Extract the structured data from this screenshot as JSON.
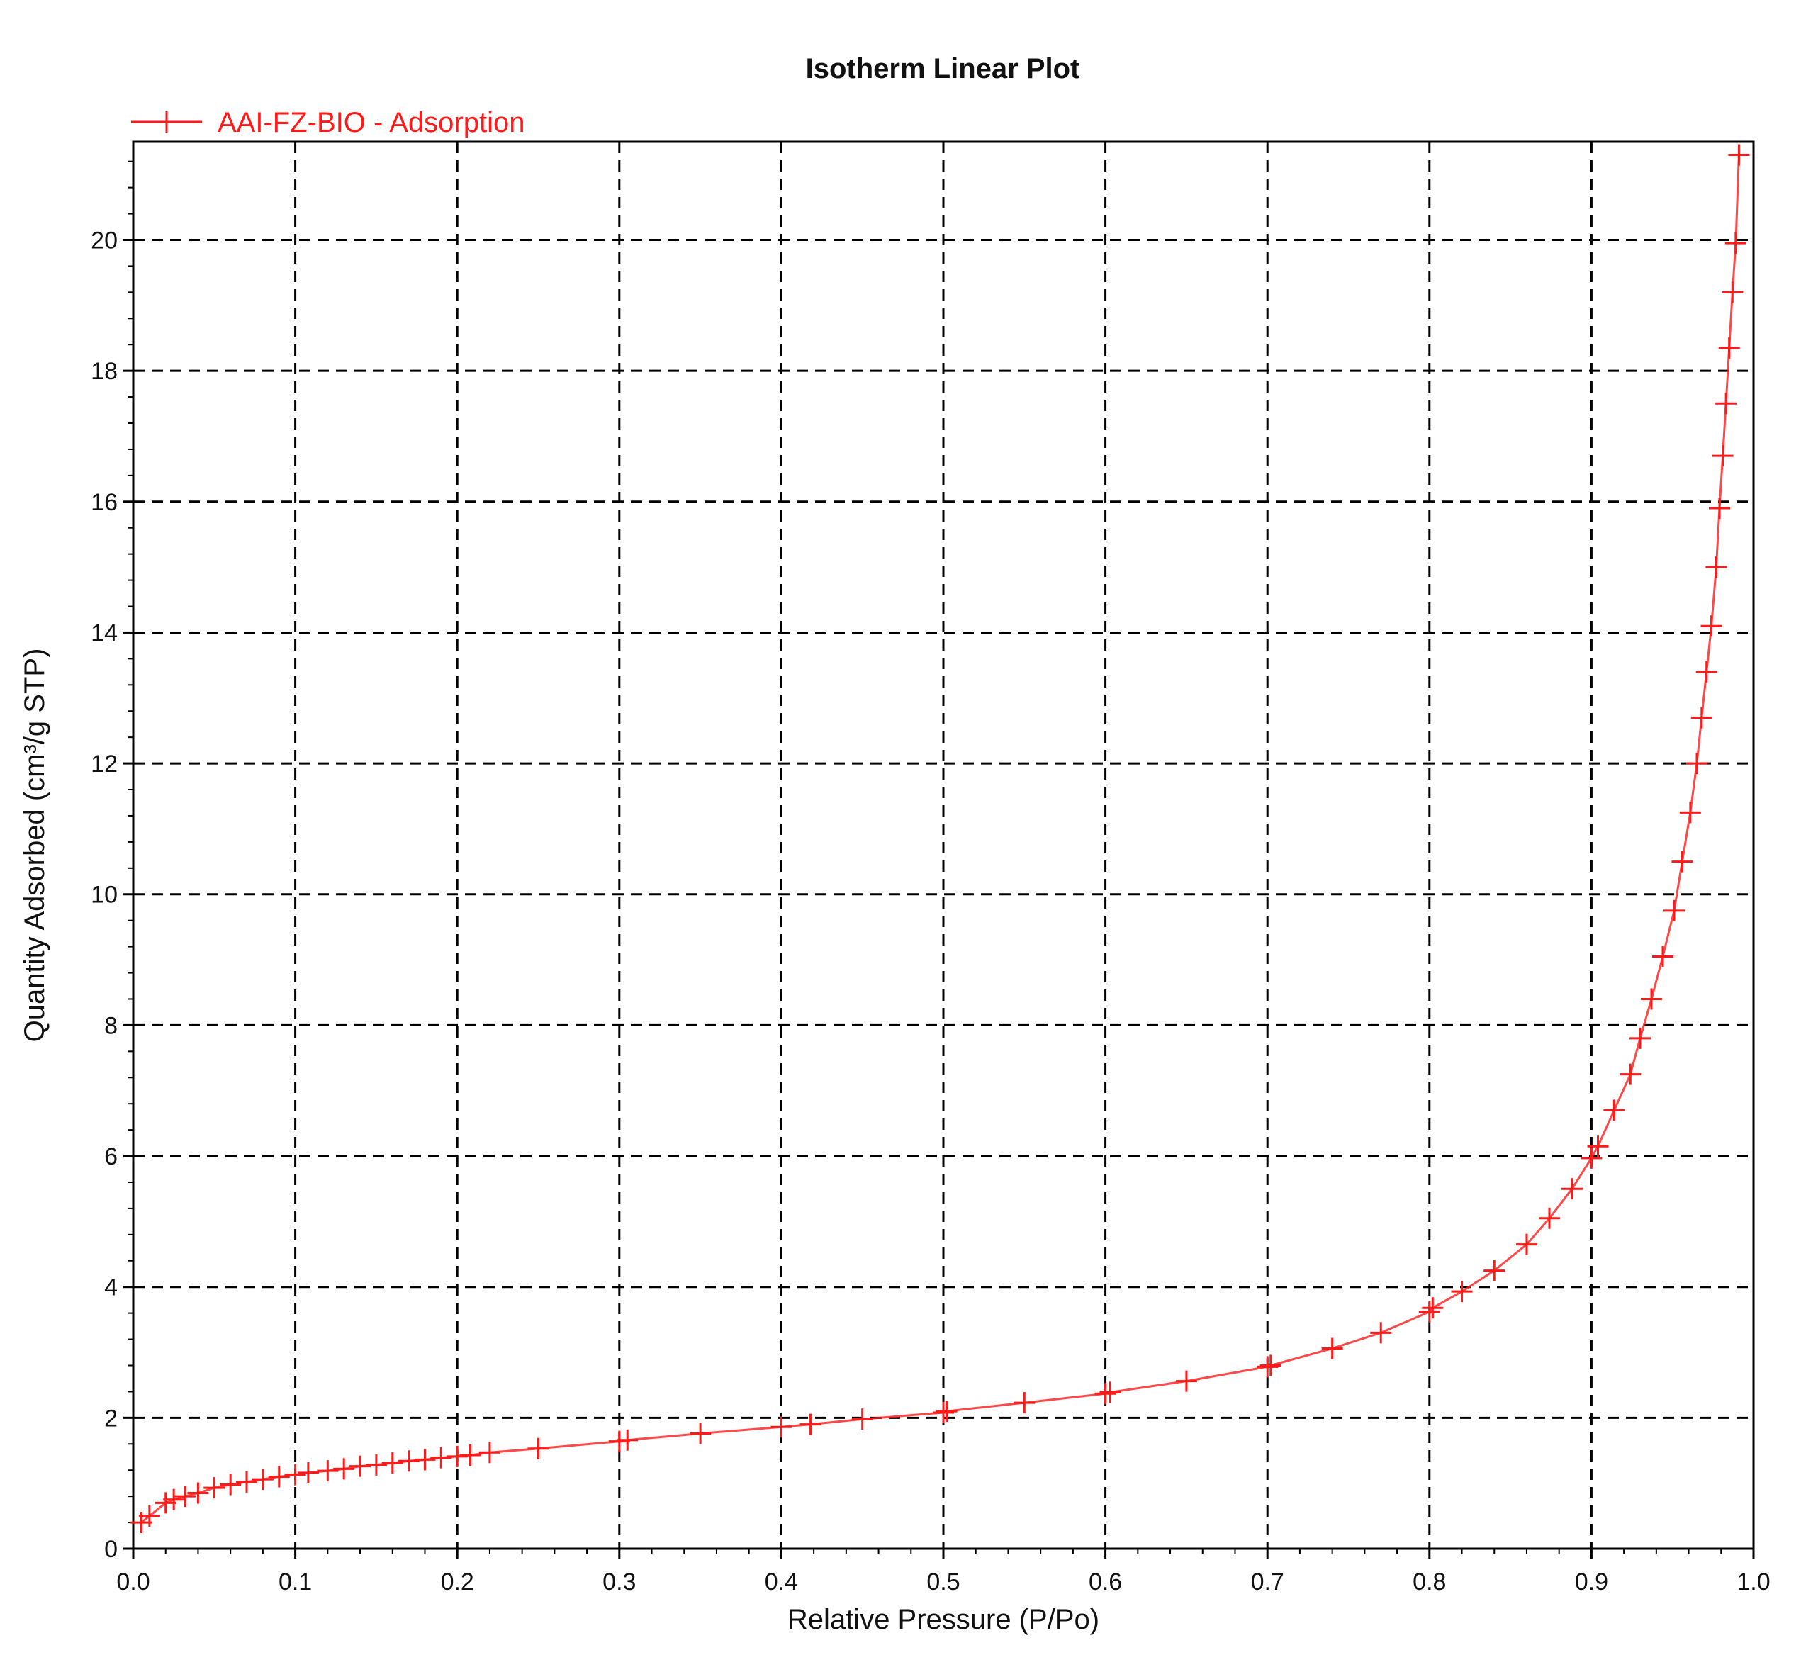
{
  "colors": {
    "series": "#ff1a1a",
    "grid": "#000000",
    "axis": "#000000",
    "text": "#111111"
  },
  "chart_data": {
    "type": "line",
    "title": "Isotherm Linear Plot",
    "xlabel": "Relative Pressure (P/Po)",
    "ylabel": "Quantity Adsorbed (cm³/g STP)",
    "xlim": [
      0.0,
      1.0
    ],
    "ylim": [
      0,
      21.5
    ],
    "xticks": [
      "0.0",
      "0.1",
      "0.2",
      "0.3",
      "0.4",
      "0.5",
      "0.6",
      "0.7",
      "0.8",
      "0.9",
      "1.0"
    ],
    "yticks": [
      "0",
      "2",
      "4",
      "6",
      "8",
      "10",
      "12",
      "14",
      "16",
      "18",
      "20"
    ],
    "grid": true,
    "grid_style": "dashed",
    "marker": "plus",
    "legend_position": "top-left",
    "series": [
      {
        "name": "AAI-FZ-BIO - Adsorption",
        "x": [
          0.005,
          0.01,
          0.02,
          0.025,
          0.032,
          0.04,
          0.05,
          0.06,
          0.07,
          0.08,
          0.09,
          0.1,
          0.108,
          0.12,
          0.13,
          0.14,
          0.15,
          0.16,
          0.17,
          0.18,
          0.19,
          0.2,
          0.208,
          0.22,
          0.25,
          0.3,
          0.305,
          0.35,
          0.4,
          0.418,
          0.45,
          0.5,
          0.502,
          0.55,
          0.6,
          0.603,
          0.65,
          0.7,
          0.702,
          0.74,
          0.77,
          0.8,
          0.802,
          0.82,
          0.84,
          0.86,
          0.874,
          0.888,
          0.9,
          0.904,
          0.914,
          0.924,
          0.93,
          0.937,
          0.944,
          0.951,
          0.956,
          0.961,
          0.965,
          0.968,
          0.971,
          0.974,
          0.977,
          0.979,
          0.981,
          0.983,
          0.985,
          0.987,
          0.989,
          0.991
        ],
        "values": [
          0.4,
          0.5,
          0.7,
          0.75,
          0.8,
          0.85,
          0.93,
          0.98,
          1.02,
          1.06,
          1.1,
          1.13,
          1.16,
          1.19,
          1.22,
          1.26,
          1.28,
          1.31,
          1.34,
          1.36,
          1.39,
          1.41,
          1.43,
          1.47,
          1.53,
          1.64,
          1.66,
          1.76,
          1.86,
          1.9,
          1.98,
          2.08,
          2.1,
          2.23,
          2.37,
          2.39,
          2.56,
          2.78,
          2.8,
          3.06,
          3.3,
          3.62,
          3.68,
          3.93,
          4.25,
          4.65,
          5.05,
          5.5,
          5.97,
          6.15,
          6.7,
          7.25,
          7.8,
          8.4,
          9.05,
          9.75,
          10.5,
          11.25,
          12.0,
          12.7,
          13.4,
          14.1,
          15.0,
          15.9,
          16.7,
          17.5,
          18.35,
          19.2,
          19.95,
          21.3
        ]
      }
    ]
  }
}
